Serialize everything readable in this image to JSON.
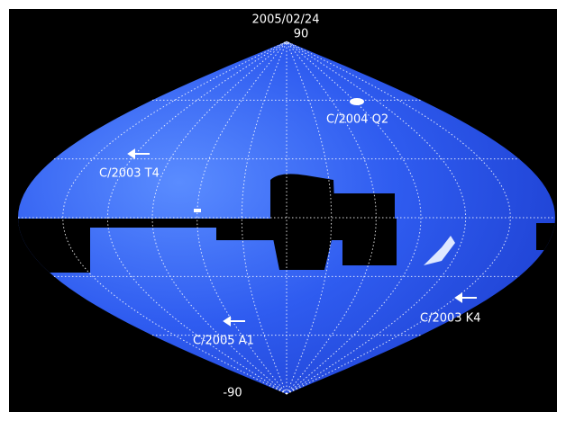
{
  "date": "2005/02/24",
  "axis_labels": {
    "top": "90",
    "bottom": "-90"
  },
  "comets": [
    {
      "label": "C/2004 Q2"
    },
    {
      "label": "C/2003 T4"
    },
    {
      "label": "C/2005 A1"
    },
    {
      "label": "C/2003 K4"
    }
  ]
}
